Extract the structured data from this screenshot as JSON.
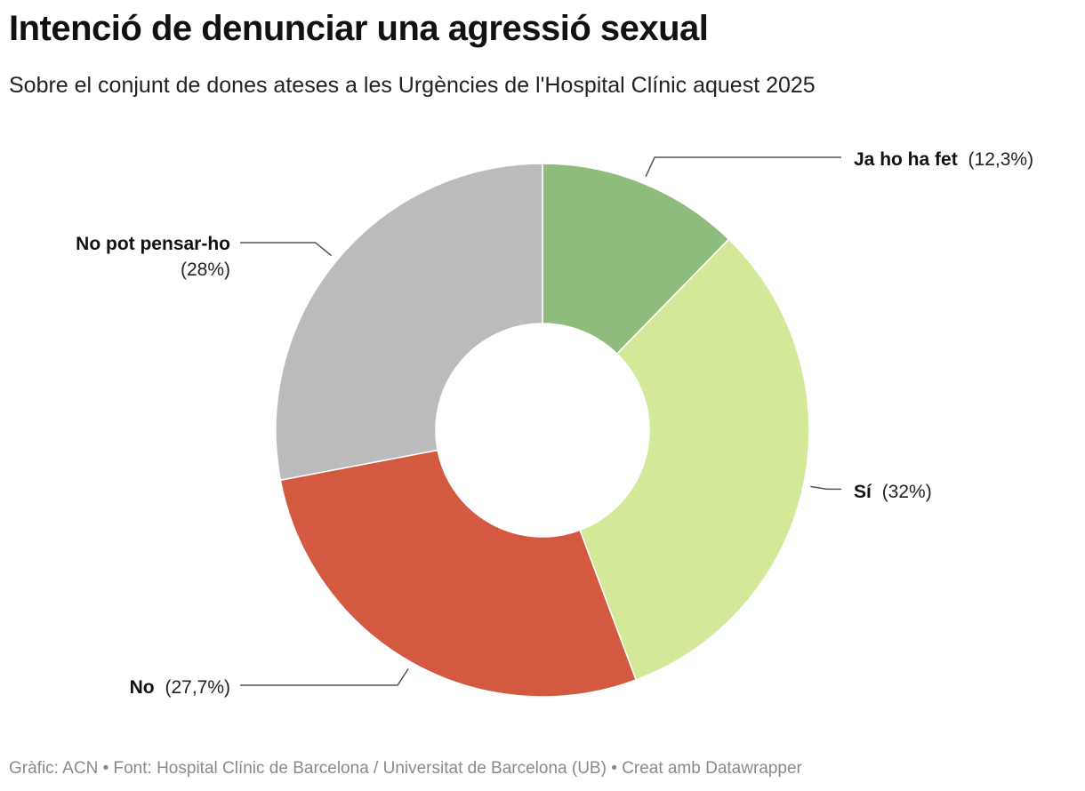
{
  "header": {
    "title": "Intenció de denunciar una agressió sexual",
    "subtitle": "Sobre el conjunt de dones ateses a les Urgències de l'Hospital Clínic aquest 2025"
  },
  "footer": {
    "text": "Gràfic: ACN • Font: Hospital Clínic de Barcelona / Universitat de Barcelona (UB) • Creat amb Datawrapper"
  },
  "chart_data": {
    "type": "pie",
    "donut": true,
    "start": "12 o'clock, clockwise",
    "slices": [
      {
        "label": "Ja ho ha fet",
        "value": 12.3,
        "value_label": "(12,3%)",
        "color": "#8fbc7d"
      },
      {
        "label": "Sí",
        "value": 32,
        "value_label": "(32%)",
        "color": "#d4e89a"
      },
      {
        "label": "No",
        "value": 27.7,
        "value_label": "(27,7%)",
        "color": "#d35a40"
      },
      {
        "label": "No pot pensar-ho",
        "value": 28,
        "value_label": "(28%)",
        "color": "#bbbbbb"
      }
    ]
  }
}
